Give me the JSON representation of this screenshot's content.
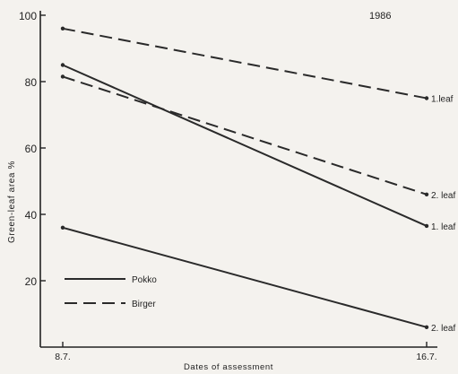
{
  "chart_data": {
    "type": "line",
    "title": "1986",
    "xlabel": "Dates of assessment",
    "ylabel": "Green-leaf area %",
    "ylim": [
      0,
      100
    ],
    "y_ticks": [
      20,
      40,
      60,
      80,
      100
    ],
    "x": [
      "8.7.",
      "16.7."
    ],
    "grid": false,
    "legend_position": "bottom-left",
    "legend": [
      {
        "name": "Pokko",
        "style": "solid"
      },
      {
        "name": "Birger",
        "style": "dashed"
      }
    ],
    "series": [
      {
        "name": "Pokko 1. leaf",
        "style": "solid",
        "values": [
          85,
          36.5
        ],
        "end_label": "1. leaf"
      },
      {
        "name": "Pokko 2. leaf",
        "style": "solid",
        "values": [
          36,
          6
        ],
        "end_label": "2. leaf"
      },
      {
        "name": "Birger 1. leaf",
        "style": "dashed",
        "values": [
          96,
          75
        ],
        "end_label": "1.leaf"
      },
      {
        "name": "Birger 2. leaf",
        "style": "dashed",
        "values": [
          81.5,
          46
        ],
        "end_label": "2. leaf"
      }
    ]
  }
}
